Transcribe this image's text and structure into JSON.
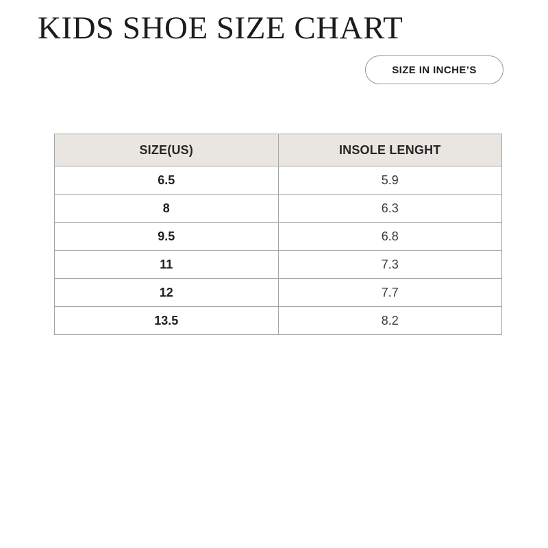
{
  "page": {
    "title": "KIDS SHOE SIZE CHART"
  },
  "unit_badge": {
    "label": "SIZE IN INCHE’S"
  },
  "chart_data": {
    "type": "table",
    "title": "KIDS SHOE SIZE CHART",
    "unit": "inches",
    "columns": [
      "SIZE(US)",
      "INSOLE LENGHT"
    ],
    "rows": [
      [
        "6.5",
        "5.9"
      ],
      [
        "8",
        "6.3"
      ],
      [
        "9.5",
        "6.8"
      ],
      [
        "11",
        "7.3"
      ],
      [
        "12",
        "7.7"
      ],
      [
        "13.5",
        "8.2"
      ]
    ]
  },
  "colors": {
    "background": "#ffffff",
    "table_header_bg": "#e9e6e1",
    "table_border": "#a6a6a6",
    "title_text": "#1c1c1c",
    "cell_text": "#3a3a3a",
    "pill_border": "#949494"
  }
}
